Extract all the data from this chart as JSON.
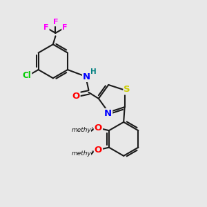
{
  "bg_color": "#e8e8e8",
  "bond_color": "#1a1a1a",
  "bond_lw": 1.5,
  "atom_colors": {
    "N": "#0000ff",
    "O": "#ff0000",
    "S": "#cccc00",
    "F": "#ff00ff",
    "Cl": "#00cc00",
    "H": "#008080"
  },
  "fs": 8.5,
  "fig_w": 3.0,
  "fig_h": 3.0,
  "dpi": 100
}
